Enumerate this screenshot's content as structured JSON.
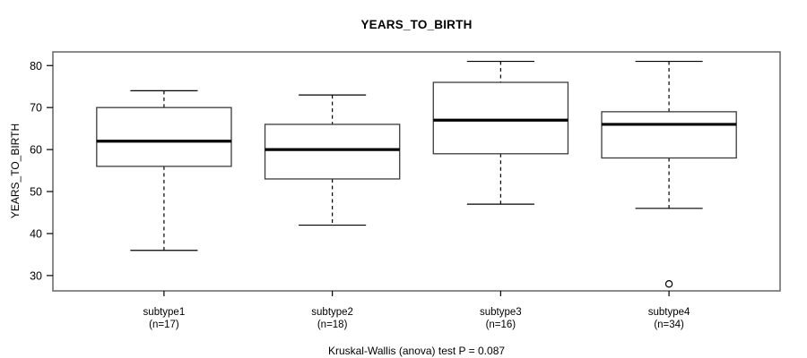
{
  "chart_data": {
    "type": "boxplot",
    "title": "YEARS_TO_BIRTH",
    "ylabel": "YEARS_TO_BIRTH",
    "caption": "Kruskal-Wallis (anova) test P = 0.087",
    "p_value": "0.087",
    "yticks": [
      30,
      40,
      50,
      60,
      70,
      80
    ],
    "ylim": [
      26.35,
      83.25
    ],
    "grid": false,
    "legend": false,
    "groups": [
      {
        "label": "subtype1",
        "sublabel": "(n=17)",
        "whisker_low": 36,
        "q1": 56,
        "median": 62,
        "q3": 70,
        "whisker_high": 74,
        "outliers": []
      },
      {
        "label": "subtype2",
        "sublabel": "(n=18)",
        "whisker_low": 42,
        "q1": 53,
        "median": 60,
        "q3": 66,
        "whisker_high": 73,
        "outliers": []
      },
      {
        "label": "subtype3",
        "sublabel": "(n=16)",
        "whisker_low": 47,
        "q1": 59,
        "median": 67,
        "q3": 76,
        "whisker_high": 81,
        "outliers": []
      },
      {
        "label": "subtype4",
        "sublabel": "(n=34)",
        "whisker_low": 46,
        "q1": 58,
        "median": 66,
        "q3": 69,
        "whisker_high": 81,
        "outliers": [
          28
        ]
      }
    ],
    "colors": {
      "frame": "#6e6e6e",
      "box_border": "#3b3b3b",
      "median": "#000000",
      "whisker": "#000000",
      "tick": "#000000",
      "text": "#000000",
      "box_fill": "#ffffff",
      "background": "#ffffff"
    }
  }
}
